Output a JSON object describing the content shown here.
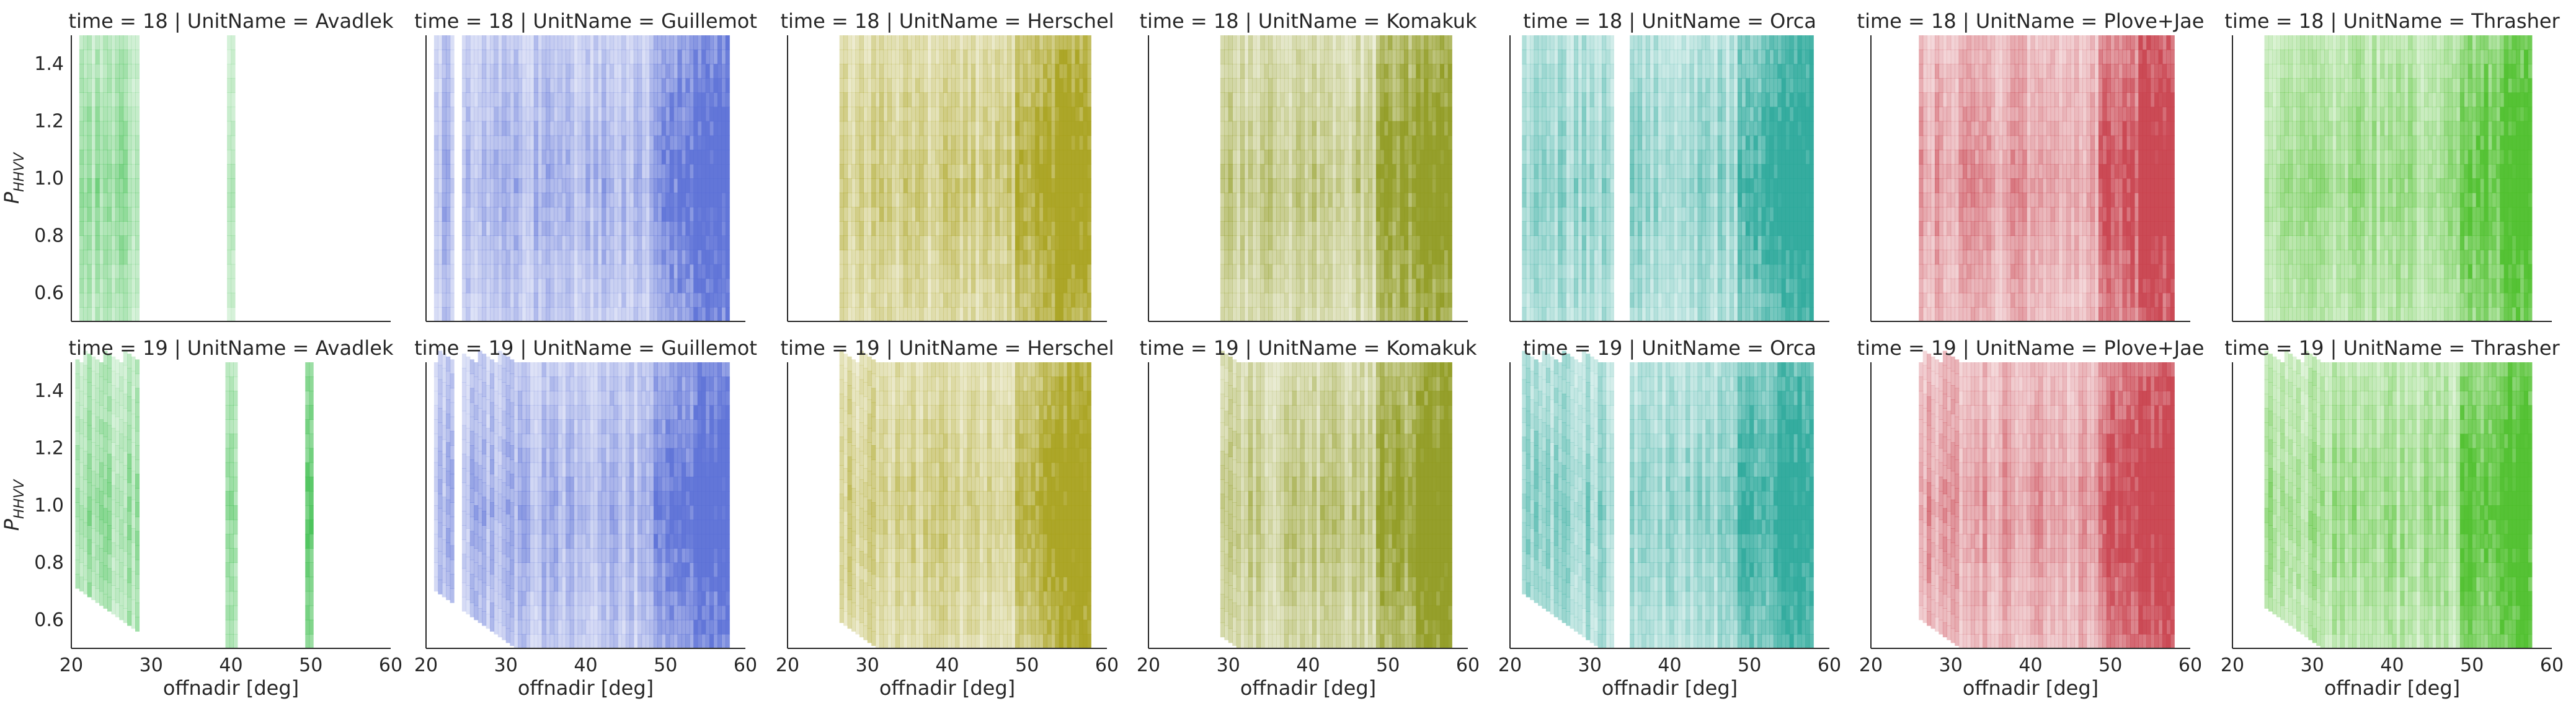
{
  "chart_data": {
    "type": "heatmap",
    "xlabel": "offnadir [deg]",
    "ylabel_base": "P",
    "ylabel_sub": "HHVV",
    "xlim": [
      20,
      60
    ],
    "ylim": [
      0.5,
      1.5
    ],
    "xticks": [
      "20",
      "30",
      "40",
      "50",
      "60"
    ],
    "yticks": [
      "0.6",
      "0.8",
      "1.0",
      "1.2",
      "1.4"
    ],
    "grid": false,
    "rows": [
      {
        "panels": [
          {
            "title": "time = 18 | UnitName = Avadlek",
            "color": "#3fbf4f",
            "coverage": [
              [
                21,
                28.5
              ],
              [
                39.5,
                40.5
              ]
            ]
          },
          {
            "title": "time = 18 | UnitName = Guillemot",
            "color": "#5a6fd6",
            "coverage": [
              [
                21,
                23.5
              ],
              [
                24.5,
                58
              ]
            ]
          },
          {
            "title": "time = 18 | UnitName = Herschel",
            "color": "#a8a11c",
            "coverage": [
              [
                26.5,
                58
              ]
            ]
          },
          {
            "title": "time = 18 | UnitName = Komakuk",
            "color": "#8f9a20",
            "coverage": [
              [
                29,
                58
              ]
            ]
          },
          {
            "title": "time = 18 | UnitName = Orca",
            "color": "#2aa89a",
            "coverage": [
              [
                21.5,
                33
              ],
              [
                35,
                58
              ]
            ]
          },
          {
            "title": "time = 18 | UnitName = Plove+Jae",
            "color": "#c8404c",
            "coverage": [
              [
                26,
                58
              ]
            ]
          },
          {
            "title": "time = 18 | UnitName = Thrasher",
            "color": "#4cbf2a",
            "coverage": [
              [
                24,
                57.5
              ]
            ]
          }
        ]
      },
      {
        "panels": [
          {
            "title": "time = 19 | UnitName = Avadlek",
            "color": "#3fbf4f",
            "coverage": [
              [
                20.5,
                28.5
              ],
              [
                39.3,
                40.8
              ],
              [
                49.3,
                50
              ]
            ]
          },
          {
            "title": "time = 19 | UnitName = Guillemot",
            "color": "#5a6fd6",
            "coverage": [
              [
                21,
                23.5
              ],
              [
                24.5,
                58
              ]
            ]
          },
          {
            "title": "time = 19 | UnitName = Herschel",
            "color": "#a8a11c",
            "coverage": [
              [
                26.5,
                58
              ]
            ]
          },
          {
            "title": "time = 19 | UnitName = Komakuk",
            "color": "#8f9a20",
            "coverage": [
              [
                29,
                58
              ]
            ]
          },
          {
            "title": "time = 19 | UnitName = Orca",
            "color": "#2aa89a",
            "coverage": [
              [
                21.5,
                33
              ],
              [
                35,
                58
              ]
            ]
          },
          {
            "title": "time = 19 | UnitName = Plove+Jae",
            "color": "#c8404c",
            "coverage": [
              [
                26,
                58
              ]
            ]
          },
          {
            "title": "time = 19 | UnitName = Thrasher",
            "color": "#4cbf2a",
            "coverage": [
              [
                24,
                57.5
              ]
            ]
          }
        ]
      }
    ]
  }
}
